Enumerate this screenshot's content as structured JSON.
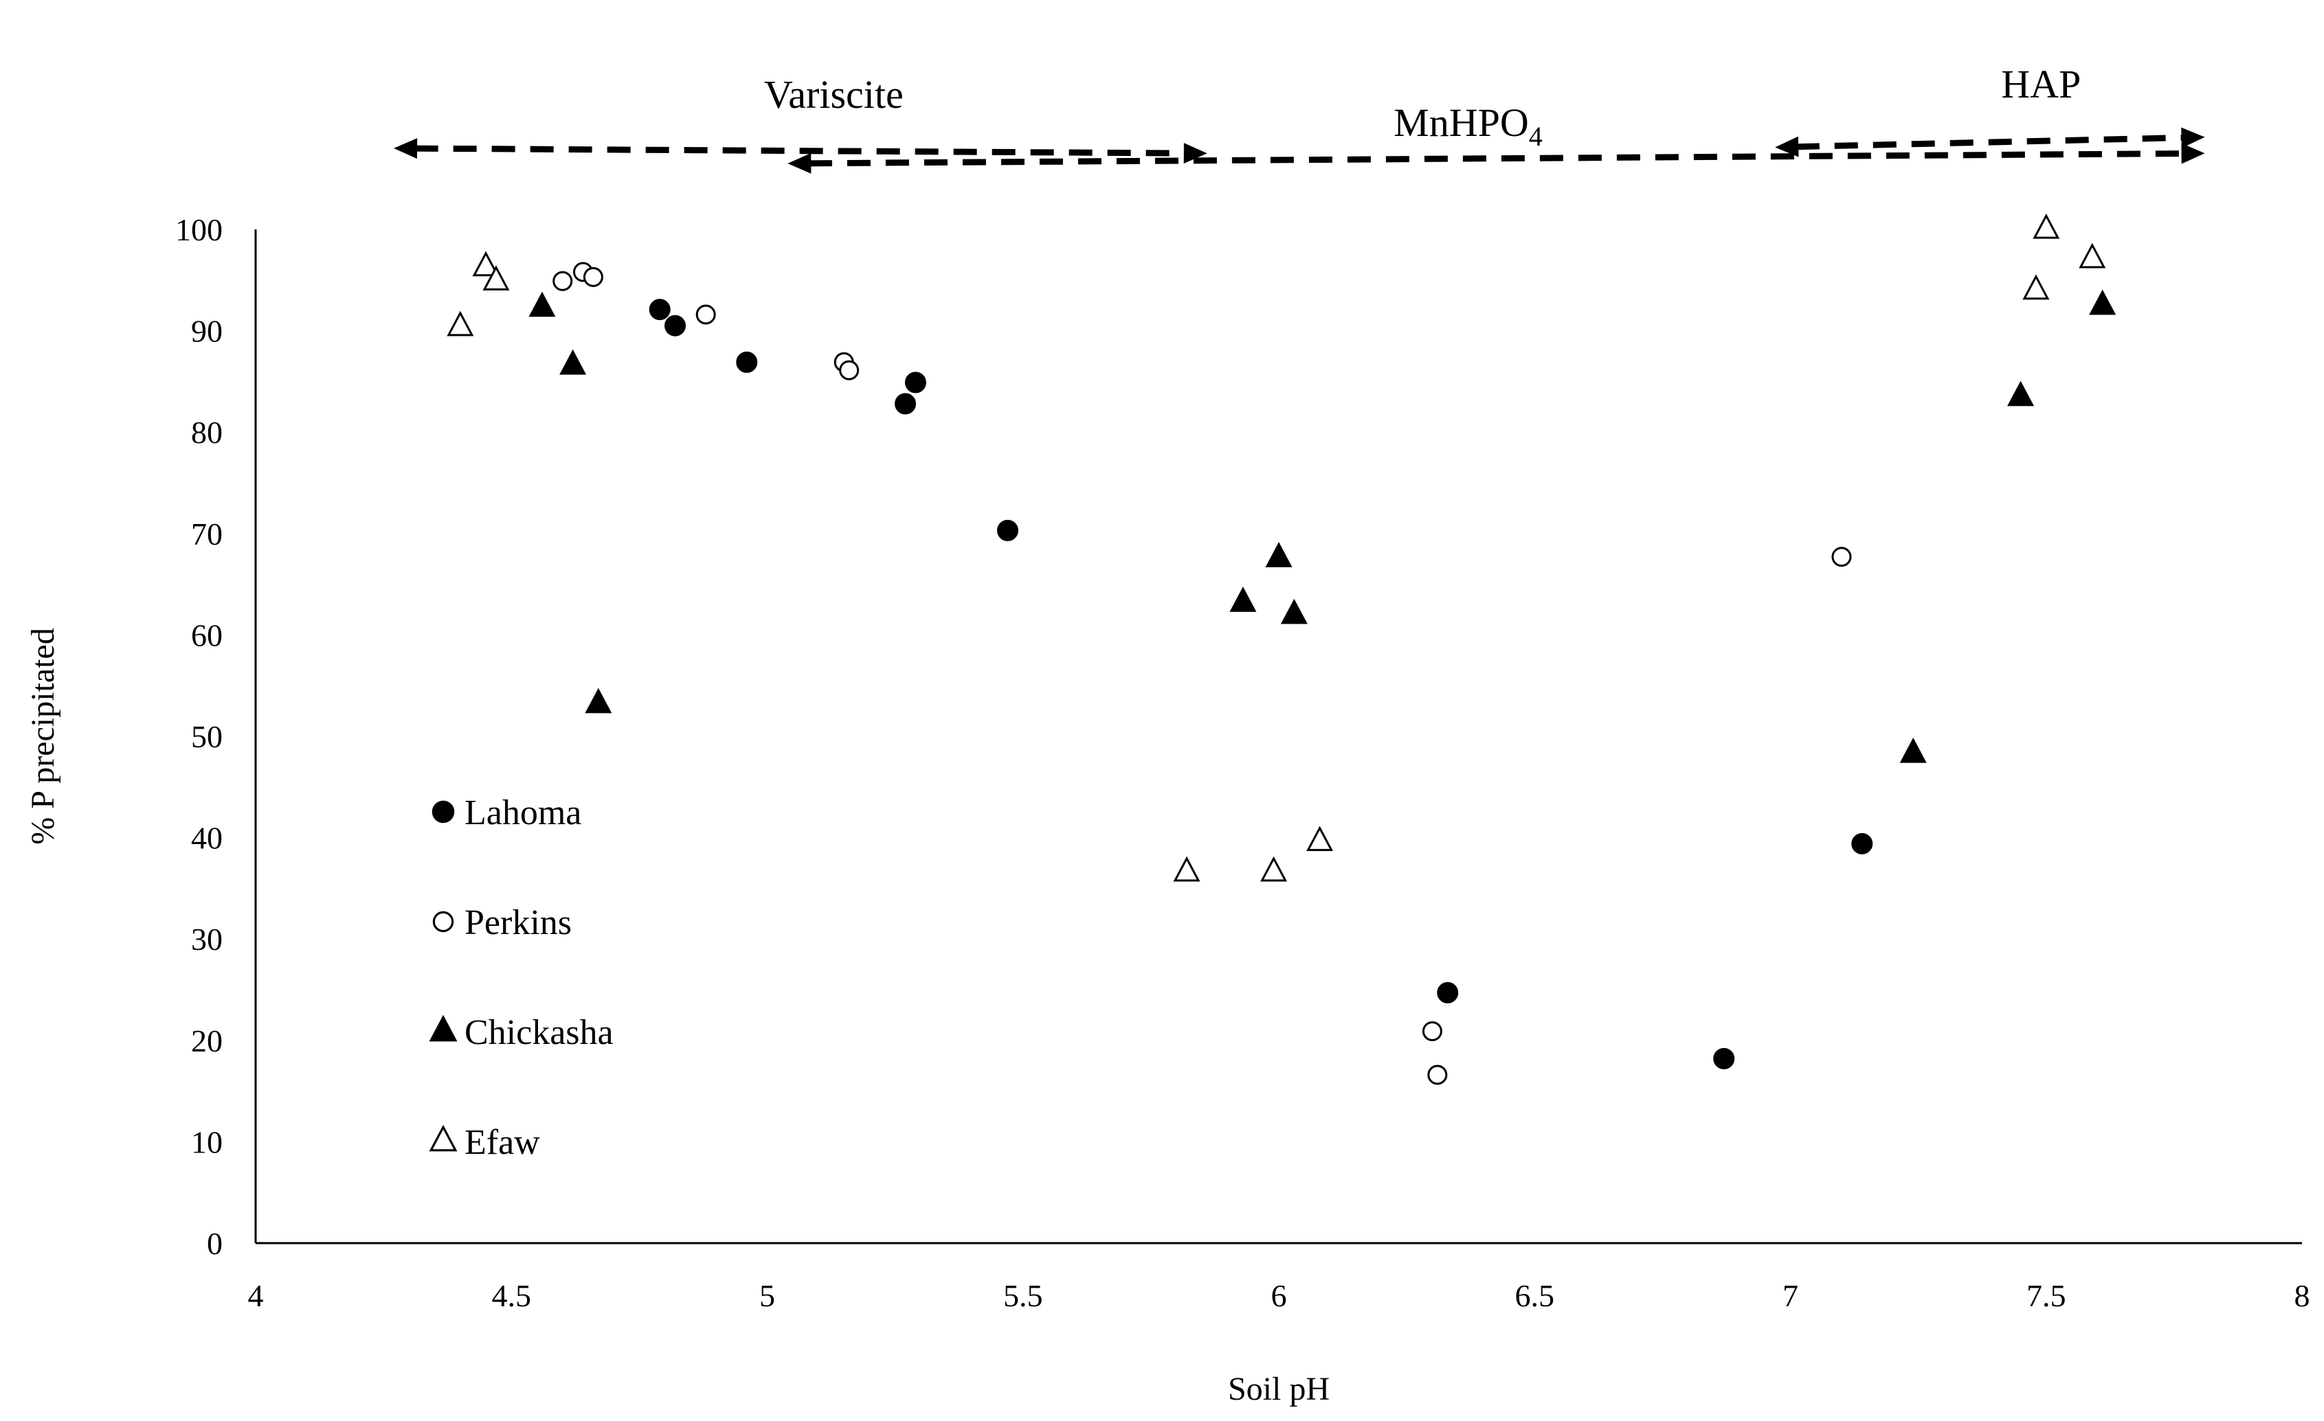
{
  "chart_data": {
    "type": "scatter",
    "title": "",
    "xlabel": "Soil pH",
    "ylabel": "% P precipitated",
    "xlim": [
      4,
      8
    ],
    "ylim": [
      0,
      100
    ],
    "x_ticks": [
      "4",
      "4.5",
      "5",
      "5.5",
      "6",
      "6.5",
      "7",
      "7.5",
      "8"
    ],
    "y_ticks": [
      "0",
      "10",
      "20",
      "30",
      "40",
      "50",
      "60",
      "70",
      "80",
      "90",
      "100"
    ],
    "grid": false,
    "legend_position": "inside-left",
    "series": [
      {
        "name": "Lahoma",
        "marker": "filled-circle",
        "points": [
          {
            "x": 4.79,
            "y": 92.1
          },
          {
            "x": 4.82,
            "y": 90.5
          },
          {
            "x": 4.96,
            "y": 86.9
          },
          {
            "x": 5.29,
            "y": 84.9
          },
          {
            "x": 5.27,
            "y": 82.8
          },
          {
            "x": 5.47,
            "y": 70.3
          },
          {
            "x": 6.33,
            "y": 24.7
          },
          {
            "x": 6.87,
            "y": 18.2
          },
          {
            "x": 7.14,
            "y": 39.4
          }
        ]
      },
      {
        "name": "Perkins",
        "marker": "open-circle",
        "points": [
          {
            "x": 4.6,
            "y": 94.9
          },
          {
            "x": 4.64,
            "y": 95.8
          },
          {
            "x": 4.66,
            "y": 95.3
          },
          {
            "x": 4.88,
            "y": 91.6
          },
          {
            "x": 5.15,
            "y": 86.9
          },
          {
            "x": 5.16,
            "y": 86.1
          },
          {
            "x": 6.3,
            "y": 20.9
          },
          {
            "x": 6.31,
            "y": 16.6
          },
          {
            "x": 7.1,
            "y": 67.7
          }
        ]
      },
      {
        "name": "Chickasha",
        "marker": "filled-triangle",
        "points": [
          {
            "x": 4.56,
            "y": 92.3
          },
          {
            "x": 4.62,
            "y": 86.6
          },
          {
            "x": 4.67,
            "y": 53.2
          },
          {
            "x": 5.93,
            "y": 63.2
          },
          {
            "x": 6.0,
            "y": 67.6
          },
          {
            "x": 6.03,
            "y": 62.0
          },
          {
            "x": 7.24,
            "y": 48.3
          },
          {
            "x": 7.45,
            "y": 83.5
          },
          {
            "x": 7.61,
            "y": 92.5
          }
        ]
      },
      {
        "name": "Efaw",
        "marker": "open-triangle",
        "points": [
          {
            "x": 4.4,
            "y": 90.4
          },
          {
            "x": 4.45,
            "y": 96.3
          },
          {
            "x": 4.47,
            "y": 94.9
          },
          {
            "x": 5.82,
            "y": 36.6
          },
          {
            "x": 5.99,
            "y": 36.6
          },
          {
            "x": 6.08,
            "y": 39.6
          },
          {
            "x": 7.48,
            "y": 94.0
          },
          {
            "x": 7.5,
            "y": 100.0
          },
          {
            "x": 7.59,
            "y": 97.1
          }
        ]
      }
    ],
    "annotations": [
      {
        "label": "Variscite",
        "sub": "",
        "x_from": 4.27,
        "x_to": 5.86,
        "y": 108,
        "y2": 107.5,
        "label_x": 5.13,
        "label_y": 112,
        "head_start": true,
        "head_end": true
      },
      {
        "label": "MnHPO",
        "sub": "4",
        "x_from": 5.04,
        "x_to": 7.81,
        "y": 106.5,
        "y2": 107.5,
        "label_x": 6.37,
        "label_y": 109.2,
        "head_start": true,
        "head_end": true
      },
      {
        "label": "HAP",
        "sub": "",
        "x_from": 6.97,
        "x_to": 7.81,
        "y": 108.1,
        "y2": 109.1,
        "label_x": 7.49,
        "label_y": 113,
        "head_start": true,
        "head_end": true
      }
    ]
  }
}
